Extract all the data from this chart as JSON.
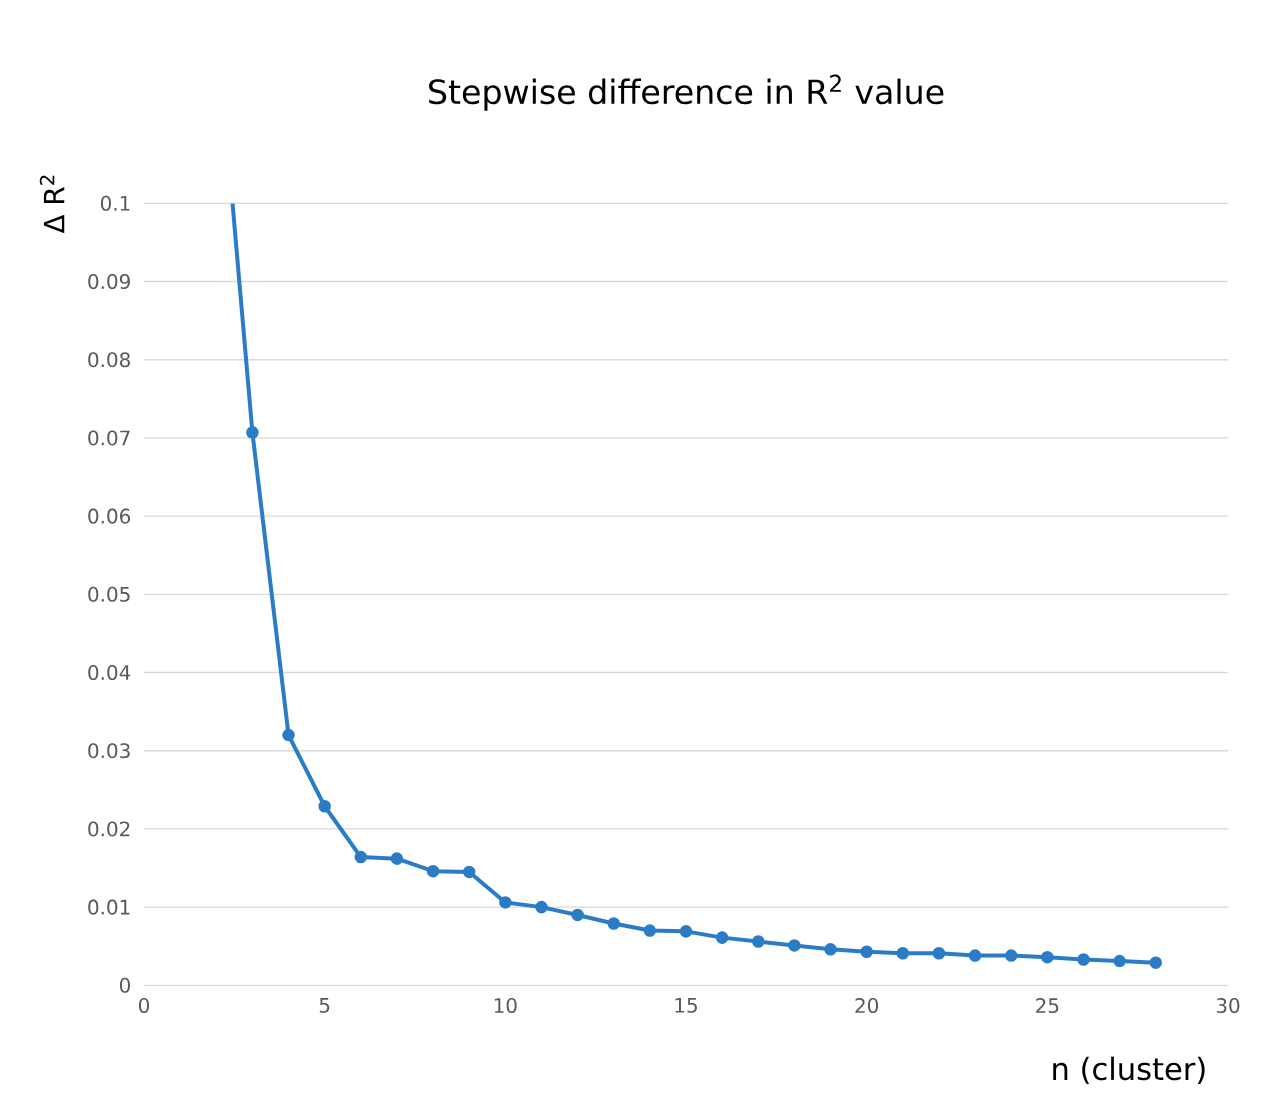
{
  "chart_data": {
    "type": "line",
    "title": "Stepwise difference in R$^{2}$ value",
    "xlabel": "n (cluster)",
    "ylabel": "Δ R$^{2}$",
    "x": [
      3,
      4,
      5,
      6,
      7,
      8,
      9,
      10,
      11,
      12,
      13,
      14,
      15,
      16,
      17,
      18,
      19,
      20,
      21,
      22,
      23,
      24,
      25,
      26,
      27,
      28
    ],
    "series": [
      {
        "color": "#2a7cc7",
        "values": [
          0.0707,
          0.032,
          0.0229,
          0.0164,
          0.0162,
          0.0146,
          0.0145,
          0.0106,
          0.01,
          0.009,
          0.0079,
          0.007,
          0.0069,
          0.0061,
          0.0056,
          0.0051,
          0.0046,
          0.0043,
          0.0041,
          0.0041,
          0.0038,
          0.0038,
          0.0036,
          0.0033,
          0.0031,
          0.0029
        ]
      },
      {
        "type": "line",
        "marker": "none",
        "color": "#2a7cc7",
        "x": [
          2.45,
          3
        ],
        "values": [
          0.1,
          0.0707
        ]
      }
    ],
    "xlim": [
      0,
      30
    ],
    "ylim": [
      0,
      0.1
    ],
    "xticks": [
      0,
      5,
      10,
      15,
      20,
      25,
      30
    ],
    "yticks": [
      0,
      0.01,
      0.02,
      0.03,
      0.04,
      0.05,
      0.06,
      0.07,
      0.08,
      0.09,
      0.1
    ],
    "grid": "y",
    "marker": "circle",
    "line_style": "solid"
  }
}
